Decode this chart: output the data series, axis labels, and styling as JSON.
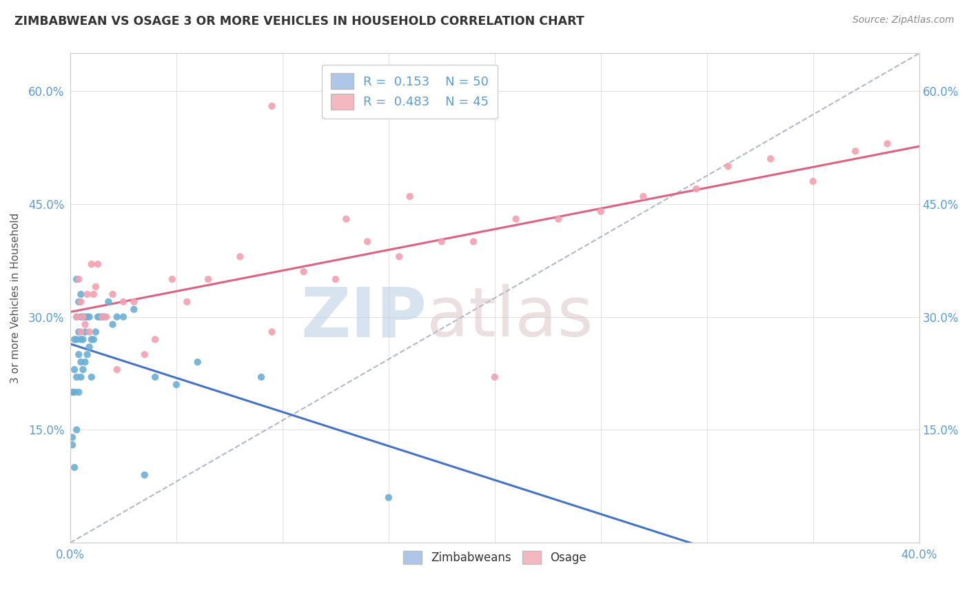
{
  "title": "ZIMBABWEAN VS OSAGE 3 OR MORE VEHICLES IN HOUSEHOLD CORRELATION CHART",
  "source": "Source: ZipAtlas.com",
  "ylabel_label": "3 or more Vehicles in Household",
  "x_min": 0.0,
  "x_max": 0.4,
  "y_min": 0.0,
  "y_max": 0.65,
  "x_ticks": [
    0.0,
    0.05,
    0.1,
    0.15,
    0.2,
    0.25,
    0.3,
    0.35,
    0.4
  ],
  "y_ticks": [
    0.0,
    0.15,
    0.3,
    0.45,
    0.6
  ],
  "zimbabwean_color": "#6aaed6",
  "osage_color": "#f4a0b0",
  "trendline_zimbabwean_color": "#4472c4",
  "trendline_osage_color": "#e06080",
  "trendline_ref_color": "#b0b8c8",
  "legend_zim_color": "#aec6e8",
  "legend_osage_color": "#f4b8c1",
  "zimbabwean_x": [
    0.001,
    0.001,
    0.001,
    0.002,
    0.002,
    0.002,
    0.002,
    0.003,
    0.003,
    0.003,
    0.003,
    0.003,
    0.004,
    0.004,
    0.004,
    0.004,
    0.005,
    0.005,
    0.005,
    0.005,
    0.005,
    0.006,
    0.006,
    0.006,
    0.007,
    0.007,
    0.007,
    0.008,
    0.008,
    0.009,
    0.009,
    0.01,
    0.01,
    0.011,
    0.012,
    0.013,
    0.014,
    0.015,
    0.016,
    0.018,
    0.02,
    0.022,
    0.025,
    0.03,
    0.035,
    0.04,
    0.05,
    0.06,
    0.09,
    0.15
  ],
  "zimbabwean_y": [
    0.13,
    0.14,
    0.2,
    0.1,
    0.2,
    0.23,
    0.27,
    0.15,
    0.22,
    0.27,
    0.3,
    0.35,
    0.2,
    0.25,
    0.28,
    0.32,
    0.22,
    0.24,
    0.27,
    0.3,
    0.33,
    0.23,
    0.27,
    0.3,
    0.24,
    0.28,
    0.3,
    0.25,
    0.3,
    0.26,
    0.3,
    0.22,
    0.27,
    0.27,
    0.28,
    0.3,
    0.3,
    0.3,
    0.3,
    0.32,
    0.29,
    0.3,
    0.3,
    0.31,
    0.09,
    0.22,
    0.21,
    0.24,
    0.22,
    0.06
  ],
  "osage_x": [
    0.003,
    0.004,
    0.005,
    0.005,
    0.006,
    0.007,
    0.008,
    0.009,
    0.01,
    0.011,
    0.012,
    0.013,
    0.015,
    0.017,
    0.02,
    0.022,
    0.025,
    0.03,
    0.035,
    0.04,
    0.048,
    0.055,
    0.065,
    0.08,
    0.095,
    0.11,
    0.125,
    0.14,
    0.155,
    0.175,
    0.19,
    0.21,
    0.23,
    0.25,
    0.27,
    0.295,
    0.31,
    0.33,
    0.35,
    0.37,
    0.385,
    0.13,
    0.095,
    0.16,
    0.2
  ],
  "osage_y": [
    0.3,
    0.35,
    0.28,
    0.32,
    0.3,
    0.29,
    0.33,
    0.28,
    0.37,
    0.33,
    0.34,
    0.37,
    0.3,
    0.3,
    0.33,
    0.23,
    0.32,
    0.32,
    0.25,
    0.27,
    0.35,
    0.32,
    0.35,
    0.38,
    0.28,
    0.36,
    0.35,
    0.4,
    0.38,
    0.4,
    0.4,
    0.43,
    0.43,
    0.44,
    0.46,
    0.47,
    0.5,
    0.51,
    0.48,
    0.52,
    0.53,
    0.43,
    0.58,
    0.46,
    0.22
  ]
}
